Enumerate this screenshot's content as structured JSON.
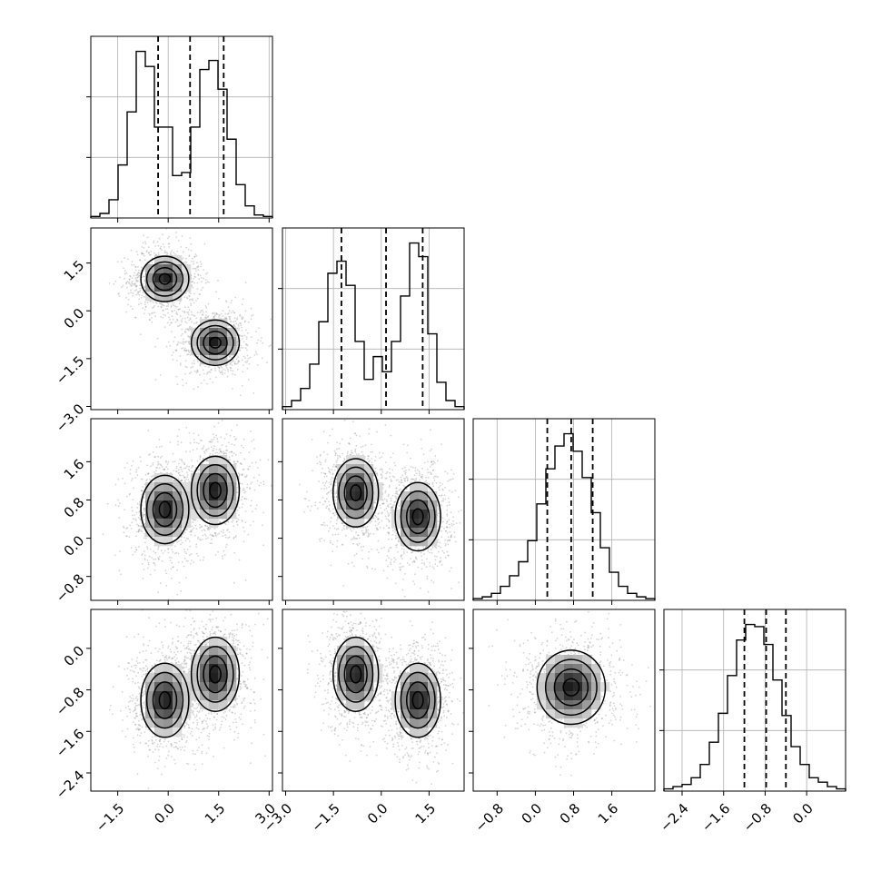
{
  "chart_data": {
    "type": "corner",
    "grid": true,
    "parameters": [
      {
        "range": [
          -2.3,
          3.1
        ],
        "tick_values": [
          -1.5,
          0.0,
          1.5,
          3.0
        ],
        "tick_labels": [
          "−1.5",
          "0.0",
          "1.5",
          "3.0"
        ],
        "quantiles": [
          -0.3,
          0.65,
          1.65
        ],
        "histogram": [
          1,
          3,
          12,
          35,
          70,
          110,
          100,
          60,
          60,
          28,
          30,
          60,
          98,
          104,
          85,
          52,
          22,
          8,
          2,
          1
        ]
      },
      {
        "range": [
          -3.1,
          2.6
        ],
        "tick_values": [
          -3.0,
          -1.5,
          0.0,
          1.5
        ],
        "tick_labels": [
          "−3.0",
          "−1.5",
          "0.0",
          "1.5"
        ],
        "quantiles": [
          -1.25,
          0.15,
          1.3
        ],
        "histogram": [
          2,
          6,
          14,
          30,
          58,
          90,
          98,
          82,
          45,
          20,
          35,
          25,
          45,
          75,
          110,
          101,
          50,
          18,
          6,
          2
        ]
      },
      {
        "range": [
          -1.3,
          2.5
        ],
        "tick_values": [
          -0.8,
          0.0,
          0.8,
          1.6
        ],
        "tick_labels": [
          "−0.8",
          "0.0",
          "0.8",
          "1.6"
        ],
        "quantiles": [
          0.25,
          0.75,
          1.2
        ],
        "histogram": [
          1,
          2,
          4,
          8,
          14,
          22,
          34,
          55,
          75,
          88,
          95,
          85,
          70,
          50,
          30,
          16,
          8,
          4,
          2,
          1
        ]
      },
      {
        "range": [
          -2.75,
          0.75
        ],
        "tick_values": [
          -2.4,
          -1.6,
          -0.8,
          0.0
        ],
        "tick_labels": [
          "−2.4",
          "−1.6",
          "−0.8",
          "0.0"
        ],
        "quantiles": [
          -1.2,
          -0.78,
          -0.4
        ],
        "histogram": [
          1,
          2,
          3,
          6,
          12,
          22,
          35,
          52,
          68,
          75,
          74,
          66,
          50,
          34,
          20,
          12,
          6,
          4,
          2,
          1
        ]
      }
    ],
    "pairs": [
      {
        "x": 0,
        "y": 1,
        "modes": [
          {
            "x": -0.1,
            "y": 1.0
          },
          {
            "x": 1.4,
            "y": -1.0
          }
        ]
      },
      {
        "x": 0,
        "y": 2,
        "modes": [
          {
            "x": -0.1,
            "y": 0.6
          },
          {
            "x": 1.4,
            "y": 1.0
          }
        ]
      },
      {
        "x": 1,
        "y": 2,
        "modes": [
          {
            "x": -0.8,
            "y": 0.95
          },
          {
            "x": 1.15,
            "y": 0.45
          }
        ]
      },
      {
        "x": 0,
        "y": 3,
        "modes": [
          {
            "x": -0.1,
            "y": -1.0
          },
          {
            "x": 1.4,
            "y": -0.5
          }
        ]
      },
      {
        "x": 1,
        "y": 3,
        "modes": [
          {
            "x": -0.8,
            "y": -0.5
          },
          {
            "x": 1.15,
            "y": -1.0
          }
        ]
      },
      {
        "x": 2,
        "y": 3,
        "modes": [
          {
            "x": 0.75,
            "y": -0.75
          }
        ]
      }
    ],
    "title": "",
    "xlabel": "",
    "ylabel": ""
  }
}
